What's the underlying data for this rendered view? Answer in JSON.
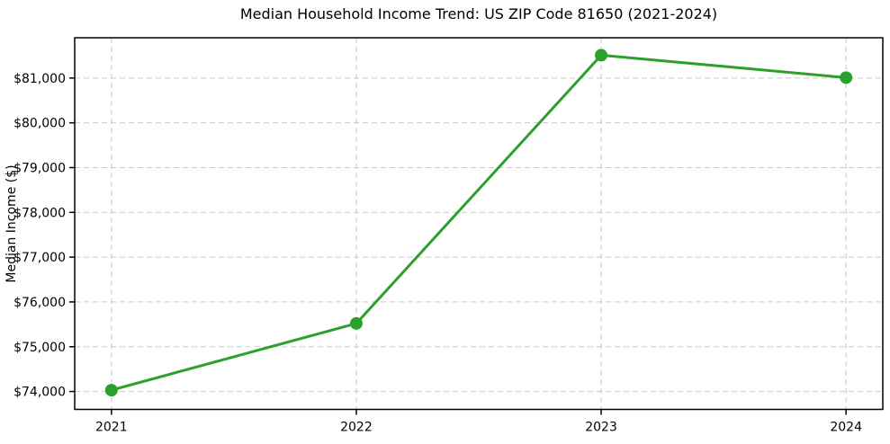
{
  "chart_data": {
    "type": "line",
    "title": "Median Household Income Trend: US ZIP Code 81650 (2021-2024)",
    "xlabel": "",
    "ylabel": "Median Income ($)",
    "x": [
      2021,
      2022,
      2023,
      2024
    ],
    "series": [
      {
        "name": "Median Household Income",
        "values": [
          74030,
          75520,
          81510,
          81010
        ]
      }
    ],
    "xticks": [
      2021,
      2022,
      2023,
      2024
    ],
    "xtick_labels": [
      "2021",
      "2022",
      "2023",
      "2024"
    ],
    "yticks": [
      74000,
      75000,
      76000,
      77000,
      78000,
      79000,
      80000,
      81000
    ],
    "ytick_labels": [
      "$74,000",
      "$75,000",
      "$76,000",
      "$77,000",
      "$78,000",
      "$79,000",
      "$80,000",
      "$81,000"
    ],
    "xlim": [
      2020.85,
      2024.15
    ],
    "ylim": [
      73600,
      81900
    ],
    "grid": true,
    "grid_style": "dashed",
    "legend": "none",
    "marker": "circle",
    "colors": {
      "line": "#2ca02c",
      "marker": "#2ca02c",
      "grid": "#c9c9c9",
      "spine": "#000000",
      "text": "#000000",
      "background": "#ffffff"
    }
  }
}
